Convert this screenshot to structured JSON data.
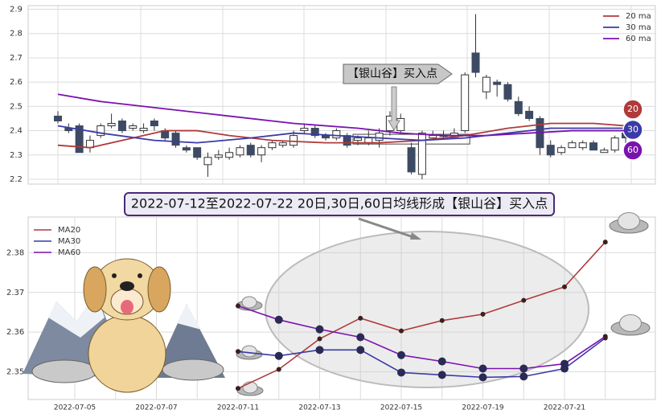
{
  "chart_data": [
    {
      "type": "candlestick",
      "legend": "upper right",
      "grid": true,
      "ylim": [
        2.18,
        2.915
      ],
      "yticks": [
        2.2,
        2.3,
        2.4,
        2.5,
        2.6,
        2.7,
        2.8,
        2.9
      ],
      "up_color": "#ffffff",
      "down_color": "#3d4a63",
      "open": [
        2.46,
        2.41,
        2.42,
        2.33,
        2.38,
        2.42,
        2.44,
        2.41,
        2.4,
        2.44,
        2.4,
        2.39,
        2.33,
        2.33,
        2.26,
        2.29,
        2.29,
        2.3,
        2.34,
        2.3,
        2.33,
        2.34,
        2.34,
        2.4,
        2.41,
        2.38,
        2.37,
        2.38,
        2.36,
        2.35,
        2.36,
        2.4,
        2.4,
        2.33,
        2.22,
        2.37,
        2.38,
        2.37,
        2.4,
        2.72,
        2.56,
        2.6,
        2.59,
        2.52,
        2.48,
        2.45,
        2.34,
        2.31,
        2.33,
        2.33,
        2.35,
        2.31,
        2.32,
        2.39
      ],
      "high": [
        2.48,
        2.43,
        2.43,
        2.38,
        2.43,
        2.47,
        2.45,
        2.43,
        2.43,
        2.45,
        2.41,
        2.4,
        2.34,
        2.33,
        2.31,
        2.32,
        2.33,
        2.34,
        2.35,
        2.34,
        2.36,
        2.36,
        2.4,
        2.43,
        2.42,
        2.39,
        2.41,
        2.39,
        2.38,
        2.4,
        2.41,
        2.48,
        2.47,
        2.35,
        2.4,
        2.4,
        2.4,
        2.41,
        2.64,
        2.88,
        2.63,
        2.61,
        2.6,
        2.54,
        2.5,
        2.46,
        2.36,
        2.34,
        2.36,
        2.36,
        2.36,
        2.33,
        2.38,
        2.41
      ],
      "low": [
        2.43,
        2.39,
        2.31,
        2.31,
        2.37,
        2.41,
        2.39,
        2.4,
        2.39,
        2.4,
        2.36,
        2.33,
        2.31,
        2.28,
        2.21,
        2.28,
        2.28,
        2.29,
        2.29,
        2.27,
        2.32,
        2.33,
        2.33,
        2.39,
        2.37,
        2.36,
        2.36,
        2.33,
        2.34,
        2.34,
        2.33,
        2.38,
        2.39,
        2.22,
        2.2,
        2.36,
        2.37,
        2.37,
        2.39,
        2.62,
        2.53,
        2.54,
        2.52,
        2.46,
        2.44,
        2.3,
        2.29,
        2.3,
        2.33,
        2.32,
        2.32,
        2.31,
        2.31,
        2.35
      ],
      "close": [
        2.44,
        2.4,
        2.31,
        2.36,
        2.42,
        2.43,
        2.4,
        2.42,
        2.41,
        2.42,
        2.37,
        2.34,
        2.32,
        2.29,
        2.29,
        2.3,
        2.31,
        2.33,
        2.3,
        2.33,
        2.35,
        2.35,
        2.38,
        2.41,
        2.38,
        2.37,
        2.4,
        2.34,
        2.37,
        2.37,
        2.39,
        2.46,
        2.45,
        2.23,
        2.39,
        2.38,
        2.38,
        2.39,
        2.63,
        2.64,
        2.62,
        2.59,
        2.53,
        2.47,
        2.45,
        2.33,
        2.3,
        2.33,
        2.35,
        2.35,
        2.32,
        2.32,
        2.37,
        2.37
      ],
      "series": [
        {
          "name": "20 ma",
          "color": "#b03a3a",
          "x": [
            0,
            3,
            7,
            10,
            13,
            16,
            20,
            25,
            30,
            34,
            38,
            42,
            46,
            50,
            53
          ],
          "values": [
            2.34,
            2.33,
            2.37,
            2.4,
            2.4,
            2.38,
            2.36,
            2.35,
            2.35,
            2.36,
            2.38,
            2.41,
            2.43,
            2.43,
            2.42
          ]
        },
        {
          "name": "30 ma",
          "color": "#3a3aa8",
          "x": [
            0,
            4,
            9,
            13,
            18,
            22,
            26,
            30,
            34,
            38,
            42,
            46,
            50,
            53
          ],
          "values": [
            2.42,
            2.39,
            2.36,
            2.35,
            2.37,
            2.39,
            2.38,
            2.37,
            2.36,
            2.37,
            2.39,
            2.41,
            2.41,
            2.41
          ]
        },
        {
          "name": "60 ma",
          "color": "#7a12b0",
          "x": [
            0,
            4,
            10,
            16,
            22,
            28,
            32,
            36,
            40,
            44,
            48,
            53
          ],
          "values": [
            2.55,
            2.52,
            2.49,
            2.46,
            2.43,
            2.41,
            2.39,
            2.38,
            2.38,
            2.39,
            2.4,
            2.4
          ]
        }
      ],
      "annotation": "【银山谷】买入点",
      "badges": [
        "20",
        "30",
        "60"
      ]
    },
    {
      "type": "line",
      "legend": "upper left",
      "grid": true,
      "title": "2022-07-12至2022-07-22 20日,30日,60日均线形成【银山谷】买入点",
      "categories": [
        "2022-07-05",
        null,
        "2022-07-07",
        null,
        "2022-07-11",
        null,
        "2022-07-13",
        null,
        "2022-07-15",
        null,
        "2022-07-19",
        null,
        "2022-07-21",
        null
      ],
      "ylim": [
        2.343,
        2.389
      ],
      "yticks": [
        2.35,
        2.36,
        2.37,
        2.38
      ],
      "series": [
        {
          "name": "MA20",
          "color": "#b03a3a",
          "values": [
            null,
            null,
            null,
            null,
            2.3458,
            2.3506,
            2.3583,
            2.3635,
            2.3603,
            2.3629,
            2.3645,
            2.368,
            2.3714,
            2.3827
          ]
        },
        {
          "name": "MA30",
          "color": "#3a3aa8",
          "values": [
            null,
            null,
            null,
            null,
            2.3551,
            2.354,
            2.3555,
            2.3555,
            2.3498,
            2.3492,
            2.3486,
            2.3488,
            2.3508,
            2.3585
          ]
        },
        {
          "name": "MA60",
          "color": "#7a12b0",
          "values": [
            null,
            null,
            null,
            null,
            2.3666,
            2.3631,
            2.3607,
            2.3587,
            2.3542,
            2.3526,
            2.3508,
            2.3508,
            2.352,
            2.3589
          ]
        }
      ]
    }
  ]
}
